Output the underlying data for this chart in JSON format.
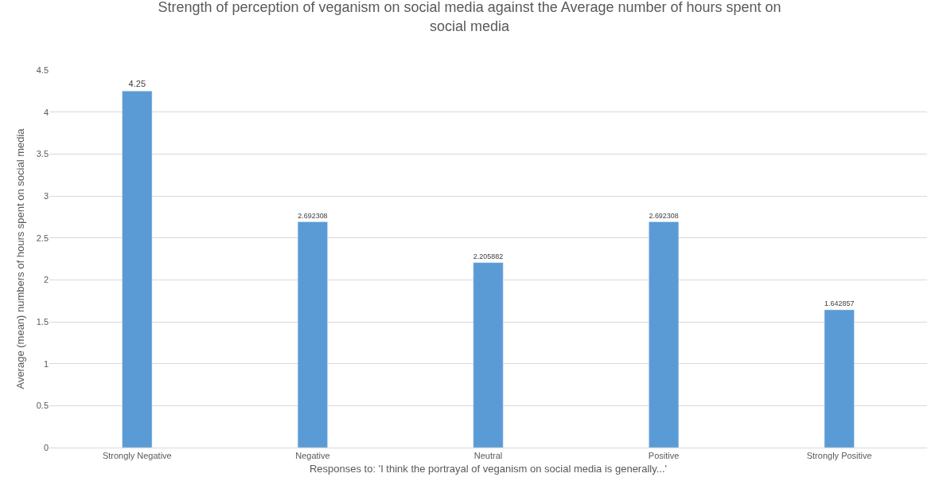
{
  "chart_data": {
    "type": "bar",
    "title": "Strength of perception of veganism on social media against the Average number of hours spent on social media",
    "xlabel": "Responses to: 'I think the portrayal of veganism on social media is generally...'",
    "ylabel": "Average (mean) numbers of hours spent on social media",
    "categories": [
      "Strongly Negative",
      "Negative",
      "Neutral",
      "Positive",
      "Strongly Positive"
    ],
    "values": [
      4.25,
      2.692308,
      2.205882,
      2.692308,
      1.642857
    ],
    "color": "#5b9bd5",
    "ylim": [
      0,
      4.5
    ],
    "yticks": [
      0,
      0.5,
      1,
      1.5,
      2,
      2.5,
      3,
      3.5,
      4,
      4.5
    ],
    "grid": "y",
    "legend": false,
    "data_labels": true
  }
}
